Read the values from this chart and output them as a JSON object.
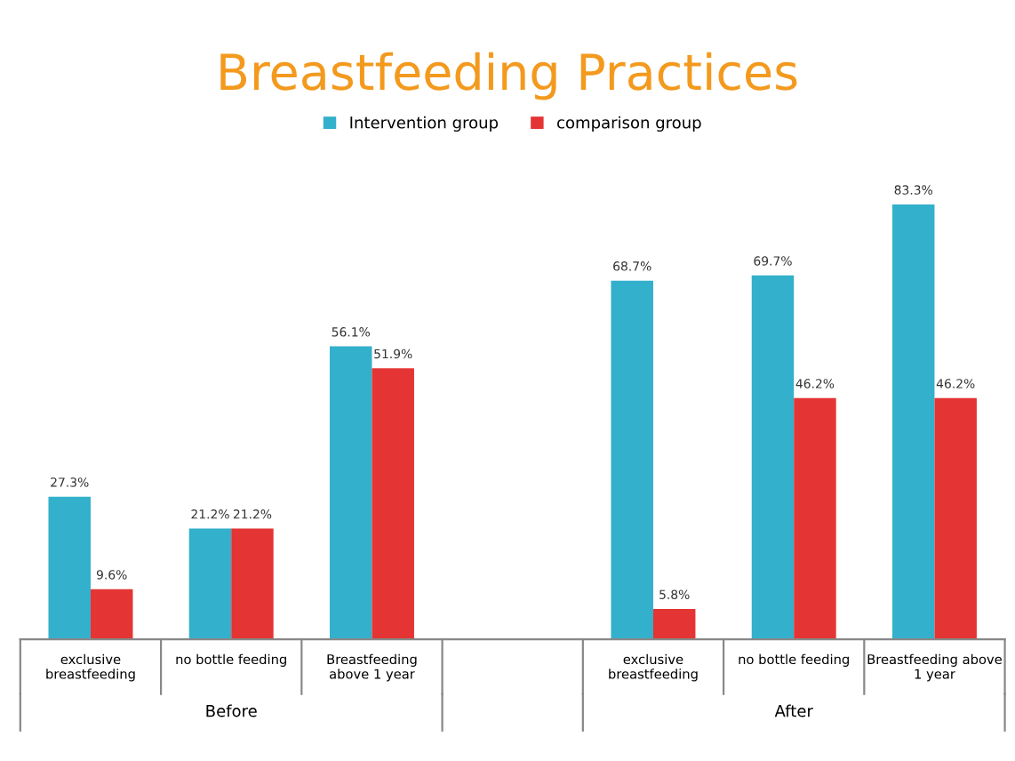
{
  "chart_data": {
    "type": "bar",
    "title": "Breastfeeding Practices",
    "categories": [
      "exclusive\nbreastfeeding",
      "no bottle feeding",
      "Breastfeeding\nabove 1 year",
      null,
      "exclusive\nbreastfeeding",
      "no bottle feeding",
      "Breastfeeding above\n1 year"
    ],
    "series": [
      {
        "name": "Intervention group",
        "color": "#33b0cb",
        "values": [
          27.3,
          21.2,
          56.1,
          null,
          68.7,
          69.7,
          83.3
        ],
        "value_labels": [
          "27.3%",
          "21.2%",
          "56.1%",
          null,
          "68.7%",
          "69.7%",
          "83.3%"
        ]
      },
      {
        "name": "comparison group",
        "color": "#e43434",
        "values": [
          9.6,
          21.2,
          51.9,
          null,
          5.8,
          46.2,
          46.2
        ],
        "value_labels": [
          "9.6%",
          "21.2%",
          "51.9%",
          null,
          "5.8%",
          "46.2%",
          "46.2%"
        ]
      }
    ],
    "annotations": [
      "Before",
      "After"
    ],
    "legend": "top",
    "grid": false
  }
}
